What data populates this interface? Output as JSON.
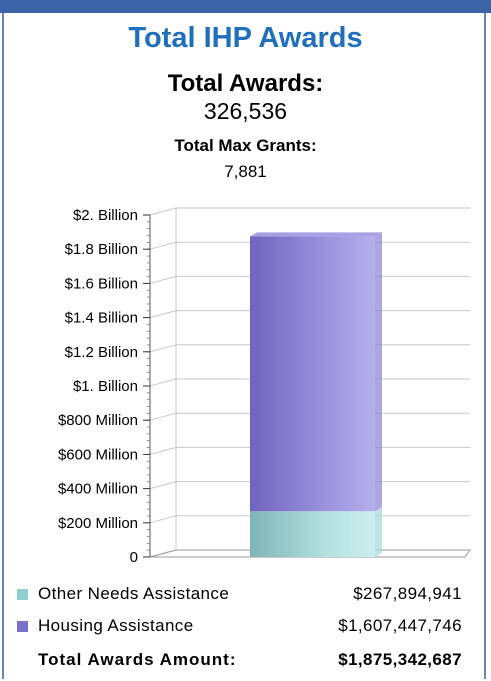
{
  "header": {
    "title": "Total IHP Awards",
    "total_awards_label": "Total Awards:",
    "total_awards_value": "326,536",
    "total_max_grants_label": "Total Max Grants:",
    "total_max_grants_value": "7,881"
  },
  "chart_data": {
    "type": "bar",
    "stacked": true,
    "categories": [
      ""
    ],
    "series": [
      {
        "name": "Other Needs Assistance",
        "values": [
          267894941
        ],
        "color": "#a8dcdc"
      },
      {
        "name": "Housing Assistance",
        "values": [
          1607447746
        ],
        "color": "#9088d8"
      }
    ],
    "yticks": [
      {
        "value": 0,
        "label": "0"
      },
      {
        "value": 200000000,
        "label": "$200 Million"
      },
      {
        "value": 400000000,
        "label": "$400 Million"
      },
      {
        "value": 600000000,
        "label": "$600 Million"
      },
      {
        "value": 800000000,
        "label": "$800 Million"
      },
      {
        "value": 1000000000,
        "label": "$1. Billion"
      },
      {
        "value": 1200000000,
        "label": "$1.2 Billion"
      },
      {
        "value": 1400000000,
        "label": "$1.4 Billion"
      },
      {
        "value": 1600000000,
        "label": "$1.6 Billion"
      },
      {
        "value": 1800000000,
        "label": "$1.8 Billion"
      },
      {
        "value": 2000000000,
        "label": "$2. Billion"
      }
    ],
    "ylim": [
      0,
      2000000000
    ],
    "grid": true,
    "legend_position": "bottom"
  },
  "legend": {
    "items": [
      {
        "name": "Other Needs Assistance",
        "amount": "$267,894,941",
        "color": "#8fcfcf"
      },
      {
        "name": "Housing Assistance",
        "amount": "$1,607,447,746",
        "color": "#7b70c8"
      }
    ],
    "total_label": "Total Awards Amount:",
    "total_amount": "$1,875,342,687"
  }
}
